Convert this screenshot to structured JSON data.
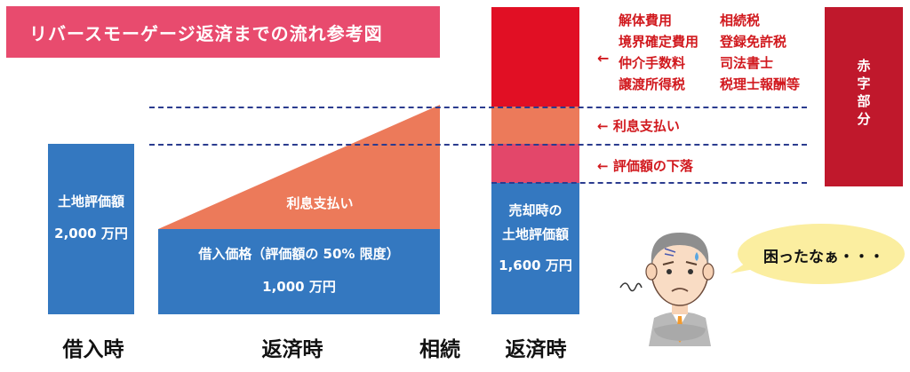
{
  "title": "リバースモーゲージ返済までの流れ参考図",
  "left_bar": {
    "label": "土地評価額",
    "value": "2,000 万円"
  },
  "loan": {
    "interest_label": "利息支払い",
    "principal_label": "借入価格（評価額の 50% 限度）",
    "principal_value": "1,000 万円"
  },
  "right_bar": {
    "label_line1": "売却時の",
    "label_line2": "土地評価額",
    "value": "1,600 万円"
  },
  "fees": {
    "col1": [
      "解体費用",
      "境界確定費用",
      "仲介手数料",
      "譲渡所得税"
    ],
    "col2": [
      "相続税",
      "登録免許税",
      "司法書士",
      "税理士報酬等"
    ]
  },
  "arrow_glyph": "←",
  "annotations": {
    "interest": "利息支払い",
    "decline": "評価額の下落"
  },
  "red_box_label": [
    "赤",
    "字",
    "部",
    "分"
  ],
  "speech": "困ったなぁ・・・",
  "axis_labels": {
    "borrow": "借入時",
    "repay": "返済時",
    "inherit": "相続",
    "repay2": "返済時"
  },
  "colors": {
    "blue": "#3478c0",
    "salmon": "#ec7a5a",
    "pink": "#e3476a",
    "red": "#e10f24",
    "darkred": "#c0182c",
    "title_bg": "#e84b6e",
    "speech_bg": "#fbeea0"
  }
}
